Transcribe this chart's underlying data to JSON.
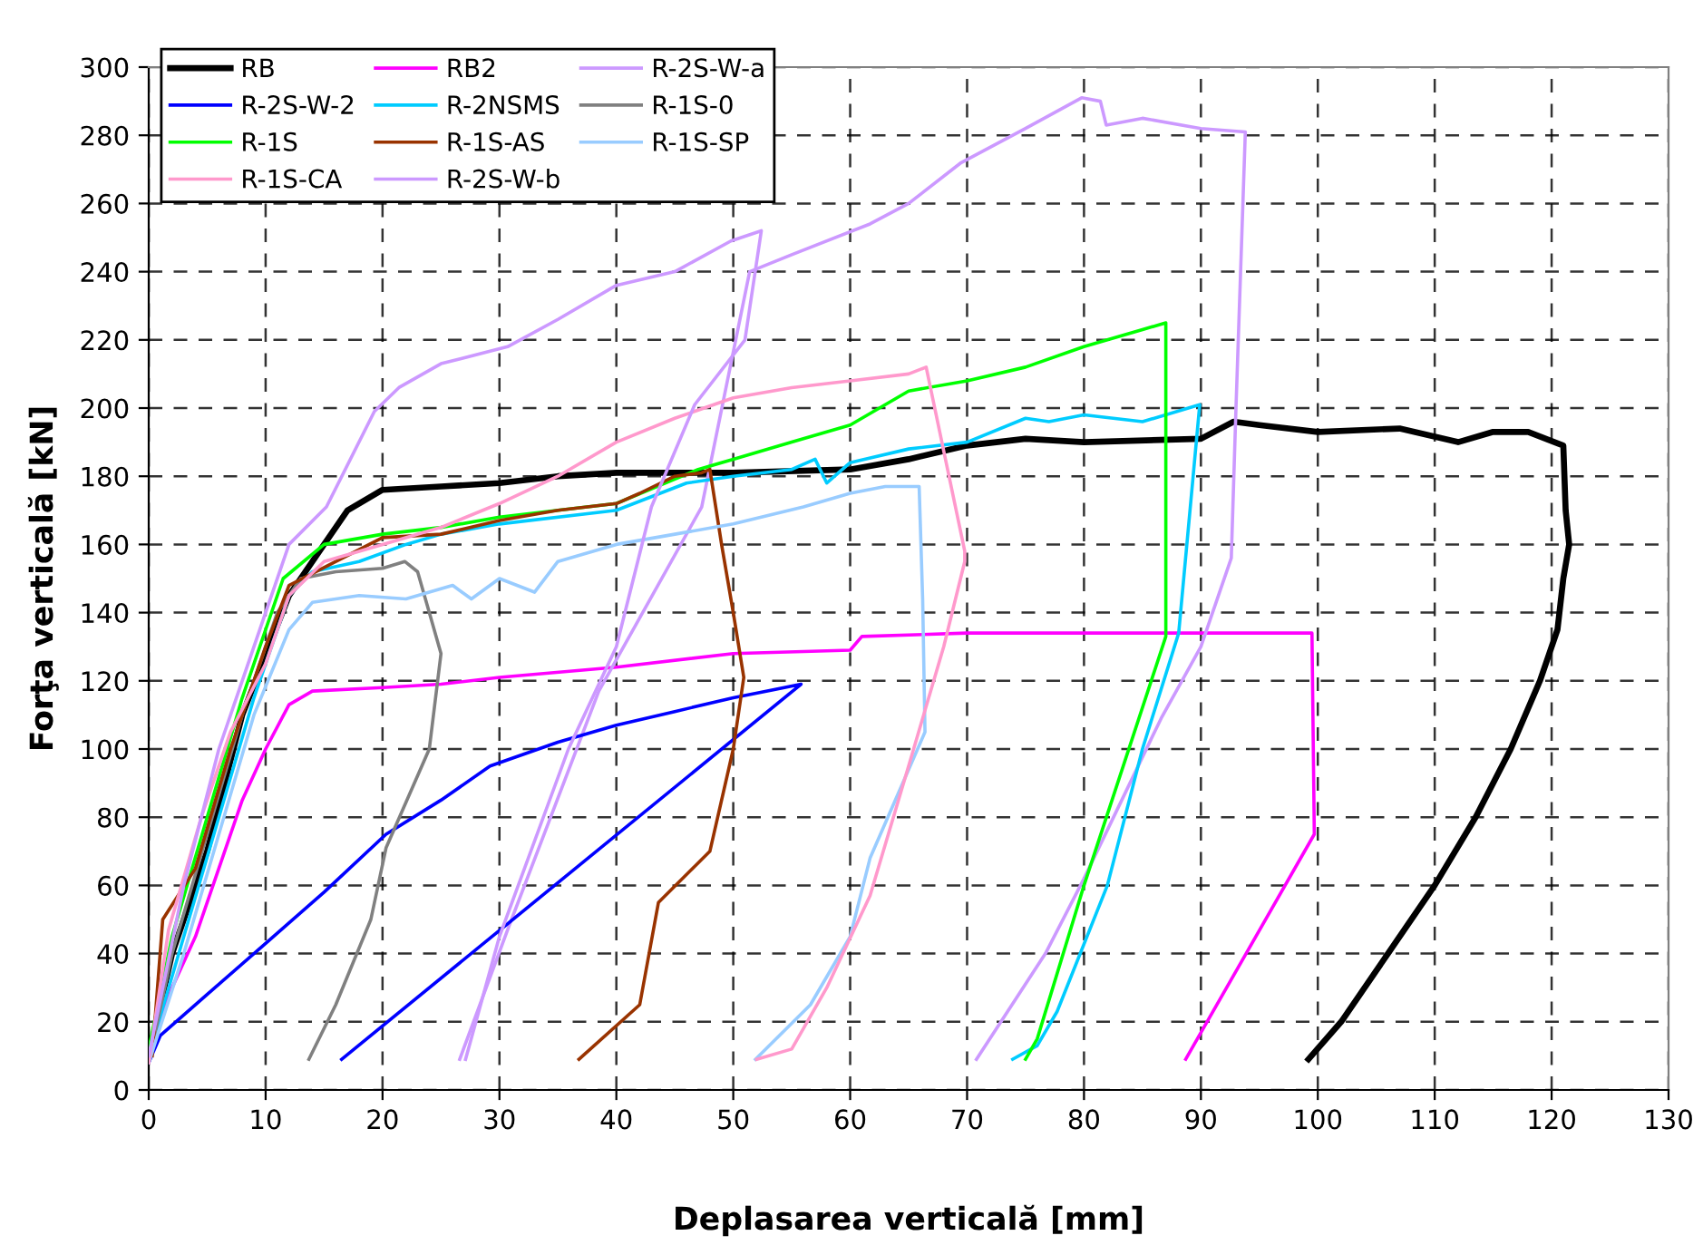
{
  "chart_data": {
    "type": "line",
    "xlabel": "Deplasarea verticală [mm]",
    "ylabel": "Forţa verticală [kN]",
    "xlim": [
      0,
      130
    ],
    "ylim": [
      0,
      300
    ],
    "xticks": [
      0,
      10,
      20,
      30,
      40,
      50,
      60,
      70,
      80,
      90,
      100,
      110,
      120,
      130
    ],
    "yticks": [
      0,
      20,
      40,
      60,
      80,
      100,
      120,
      140,
      160,
      180,
      200,
      220,
      240,
      260,
      280,
      300
    ],
    "grid": true,
    "legend": "top left",
    "marker": "none",
    "line_style": "solid",
    "series": [
      {
        "name": "RB",
        "color": "#000000",
        "x": [
          0,
          2,
          5,
          8,
          12,
          15,
          17,
          20,
          25,
          30,
          35,
          40,
          50,
          60,
          65,
          70,
          75,
          80,
          90,
          92.8,
          95,
          100,
          107,
          112,
          115,
          118,
          121,
          121.2,
          121.5,
          121,
          120.5,
          119,
          116.5,
          113.5,
          110,
          106,
          102,
          99.2
        ],
        "values": [
          10,
          40,
          70,
          110,
          145,
          160,
          170,
          176,
          177,
          178,
          180,
          181,
          181,
          182,
          185,
          189,
          191,
          190,
          191,
          196,
          195,
          193,
          194,
          190,
          193,
          193,
          189,
          170,
          160,
          150,
          135,
          120,
          100,
          80,
          60,
          40,
          20,
          9
        ]
      },
      {
        "name": "RB2",
        "color": "#ff00ff",
        "x": [
          0,
          2,
          4,
          6,
          8,
          10,
          12,
          14,
          20,
          25,
          30,
          40,
          50,
          60,
          61,
          70,
          80,
          90,
          99.5,
          99.7,
          88.7
        ],
        "values": [
          10,
          30,
          45,
          65,
          85,
          100,
          113,
          117,
          118,
          119,
          121,
          124,
          128,
          129,
          133,
          134,
          134,
          134,
          134,
          75,
          9
        ]
      },
      {
        "name": "R-2S-W-a",
        "color": "#cc99ff",
        "x": [
          26.6,
          30.7,
          38.5,
          47.3,
          51.4,
          55,
          61.7,
          65,
          69.5,
          75,
          79.8,
          81.4,
          81.9,
          85,
          90,
          93.8,
          93,
          92.6,
          90,
          86.6,
          80,
          76.7,
          70.8
        ],
        "values": [
          9,
          47,
          117,
          171,
          240,
          245,
          254,
          260,
          272,
          282,
          291,
          290,
          283,
          285,
          282,
          281,
          200,
          156,
          130,
          109,
          62,
          40,
          9
        ]
      },
      {
        "name": "R-2S-W-2",
        "color": "#0000ff",
        "x": [
          0,
          1,
          5,
          10,
          15,
          20.3,
          25,
          29.2,
          35,
          40,
          45,
          50,
          55.8,
          16.5
        ],
        "values": [
          8,
          16,
          28,
          43,
          58,
          75,
          85,
          95,
          102,
          107,
          111,
          115,
          119,
          9
        ]
      },
      {
        "name": "R-2NSMS",
        "color": "#00ccff",
        "x": [
          0,
          3,
          6,
          9,
          12,
          14,
          18,
          22,
          25,
          30,
          40,
          46,
          50,
          55,
          57,
          58,
          60,
          65,
          70,
          75,
          77,
          80,
          85,
          89.9,
          88.1,
          85,
          82,
          77.7,
          76,
          73.9
        ],
        "values": [
          10,
          45,
          80,
          115,
          145,
          152,
          155,
          160,
          163,
          166,
          170,
          178,
          180,
          182,
          185,
          178,
          184,
          188,
          190,
          197,
          196,
          198,
          196,
          201,
          134,
          100,
          60,
          23,
          13,
          9
        ]
      },
      {
        "name": "R-1S-0",
        "color": "#808080",
        "x": [
          0,
          2,
          5,
          8,
          11,
          13,
          16,
          20,
          21.9,
          23,
          24,
          25,
          24,
          20.3,
          19,
          16,
          13.7
        ],
        "values": [
          8,
          40,
          75,
          110,
          140,
          150,
          152,
          153,
          155,
          152,
          140,
          128,
          100,
          71,
          50,
          25,
          9
        ]
      },
      {
        "name": "R-1S",
        "color": "#00ff00",
        "x": [
          0,
          2,
          5,
          8,
          11.5,
          15,
          20,
          25,
          30,
          40,
          47,
          50,
          55,
          60,
          65,
          70,
          75,
          80,
          85,
          87,
          87,
          80,
          76,
          75
        ],
        "values": [
          12,
          45,
          80,
          115,
          150,
          160,
          163,
          165,
          168,
          172,
          182,
          185,
          190,
          195,
          205,
          208,
          212,
          218,
          223,
          225,
          133,
          60,
          15,
          9
        ]
      },
      {
        "name": "R-1S-AS",
        "color": "#993300",
        "x": [
          0.3,
          1.2,
          4,
          7,
          10,
          12,
          20,
          25,
          30,
          35,
          40,
          42,
          45,
          47.3,
          48,
          49,
          50,
          50.9,
          50,
          48,
          43.6,
          42,
          36.8
        ],
        "values": [
          10,
          50,
          65,
          100,
          130,
          148,
          162,
          163,
          167,
          170,
          172,
          175,
          180,
          181,
          182,
          160,
          140,
          121,
          100,
          70,
          55,
          25,
          9
        ]
      },
      {
        "name": "R-1S-SP",
        "color": "#99ccff",
        "x": [
          0,
          3,
          6,
          9,
          12,
          14,
          18,
          22,
          26,
          27.6,
          30,
          33,
          35,
          40,
          45,
          50,
          56,
          60,
          63,
          65.9,
          66.2,
          66.4,
          61.7,
          60,
          56.6,
          51.9
        ],
        "values": [
          8,
          40,
          75,
          110,
          135,
          143,
          145,
          144,
          148,
          144,
          150,
          146,
          155,
          160,
          163,
          166,
          171,
          175,
          177,
          177,
          144,
          105,
          68,
          45,
          25,
          9
        ]
      },
      {
        "name": "R-1S-CA",
        "color": "#ff99cc",
        "x": [
          0,
          1.7,
          4.5,
          7,
          10,
          12,
          15,
          20,
          25,
          30,
          35,
          40,
          45,
          50,
          55,
          60,
          65,
          66.5,
          69.8,
          69.8,
          68,
          65,
          61.7,
          58,
          55,
          52
        ],
        "values": [
          8,
          47,
          80,
          105,
          125,
          145,
          155,
          160,
          165,
          172,
          180,
          190,
          197,
          203,
          206,
          208,
          210,
          212,
          158,
          155,
          130,
          95,
          57,
          30,
          12,
          9
        ]
      },
      {
        "name": "R-2S-W-b",
        "color": "#cc99ff",
        "x": [
          0,
          3,
          6,
          9,
          12,
          15.2,
          19.3,
          21.4,
          25,
          30.7,
          35,
          40,
          45,
          49.8,
          52.4,
          51,
          46.7,
          43,
          40,
          35.9,
          30,
          27.1
        ],
        "values": [
          10,
          60,
          100,
          130,
          160,
          171,
          199,
          206,
          213,
          218,
          226,
          236,
          240,
          249,
          252,
          220,
          201,
          171,
          130,
          100,
          45,
          9
        ]
      }
    ]
  }
}
